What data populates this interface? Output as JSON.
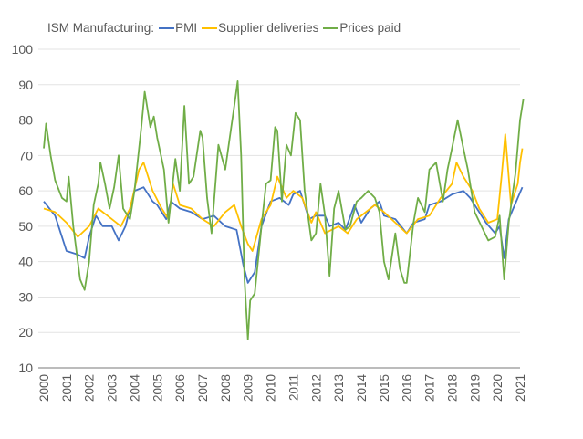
{
  "chart_data": {
    "type": "line",
    "title": "ISM Manufacturing:",
    "xlabel": "",
    "ylabel": "",
    "xlim": [
      2000,
      2021
    ],
    "ylim": [
      10,
      100
    ],
    "yticks": [
      10,
      20,
      30,
      40,
      50,
      60,
      70,
      80,
      90,
      100
    ],
    "xticks": [
      "2000",
      "2001",
      "2002",
      "2003",
      "2004",
      "2005",
      "2006",
      "2007",
      "2008",
      "2009",
      "2010",
      "2011",
      "2012",
      "2013",
      "2014",
      "2015",
      "2016",
      "2017",
      "2018",
      "2019",
      "2020",
      "2021"
    ],
    "grid": true,
    "legend": "top",
    "series": [
      {
        "name": "PMI",
        "color": "#4472C4",
        "x": [
          2000.0,
          2000.5,
          2001.0,
          2001.5,
          2001.8,
          2002.0,
          2002.3,
          2002.6,
          2003.0,
          2003.3,
          2003.6,
          2004.0,
          2004.4,
          2004.8,
          2005.0,
          2005.4,
          2005.6,
          2006.0,
          2006.5,
          2007.0,
          2007.5,
          2008.0,
          2008.5,
          2008.8,
          2009.0,
          2009.3,
          2009.6,
          2010.0,
          2010.4,
          2010.8,
          2011.0,
          2011.3,
          2011.7,
          2012.0,
          2012.4,
          2012.6,
          2013.0,
          2013.3,
          2013.7,
          2014.0,
          2014.4,
          2014.8,
          2015.0,
          2015.5,
          2016.0,
          2016.3,
          2016.8,
          2017.0,
          2017.5,
          2018.0,
          2018.5,
          2018.8,
          2019.0,
          2019.5,
          2019.9,
          2020.1,
          2020.3,
          2020.5,
          2020.9,
          2021.1
        ],
        "y": [
          57,
          53,
          43,
          42,
          41,
          47,
          53,
          50,
          50,
          46,
          50,
          60,
          61,
          57,
          56,
          52,
          57,
          55,
          54,
          52,
          53,
          50,
          49,
          39,
          34,
          37,
          50,
          57,
          58,
          56,
          59,
          60,
          52,
          53,
          53,
          50,
          51,
          49,
          56,
          51,
          55,
          57,
          53,
          52,
          48,
          51,
          52,
          56,
          57,
          59,
          60,
          58,
          56,
          51,
          48,
          50,
          41,
          52,
          58,
          61
        ]
      },
      {
        "name": "Supplier deliveries",
        "color": "#FFC000",
        "x": [
          2000.0,
          2000.5,
          2001.0,
          2001.5,
          2002.0,
          2002.4,
          2003.0,
          2003.4,
          2003.8,
          2004.2,
          2004.4,
          2004.8,
          2005.2,
          2005.5,
          2005.7,
          2006.0,
          2006.5,
          2007.0,
          2007.5,
          2008.0,
          2008.4,
          2008.7,
          2009.0,
          2009.2,
          2009.6,
          2010.0,
          2010.3,
          2010.7,
          2011.0,
          2011.4,
          2011.8,
          2012.0,
          2012.4,
          2013.0,
          2013.4,
          2013.8,
          2014.2,
          2014.6,
          2015.0,
          2015.5,
          2016.0,
          2016.5,
          2017.0,
          2017.5,
          2018.0,
          2018.2,
          2018.5,
          2018.9,
          2019.2,
          2019.6,
          2020.0,
          2020.2,
          2020.35,
          2020.6,
          2020.9,
          2021.0,
          2021.1
        ],
        "y": [
          55,
          54,
          51,
          47,
          50,
          55,
          52,
          50,
          55,
          66,
          68,
          60,
          55,
          52,
          62,
          56,
          55,
          52,
          50,
          54,
          56,
          50,
          45,
          43,
          52,
          56,
          64,
          58,
          60,
          58,
          51,
          54,
          48,
          50,
          48,
          52,
          54,
          56,
          54,
          51,
          48,
          52,
          53,
          58,
          62,
          68,
          64,
          60,
          55,
          51,
          52,
          65,
          76,
          56,
          62,
          68,
          72
        ]
      },
      {
        "name": "Prices paid",
        "color": "#70AD47",
        "x": [
          2000.0,
          2000.1,
          2000.3,
          2000.5,
          2000.8,
          2001.0,
          2001.1,
          2001.3,
          2001.5,
          2001.6,
          2001.8,
          2002.0,
          2002.2,
          2002.4,
          2002.5,
          2002.7,
          2002.9,
          2003.1,
          2003.3,
          2003.5,
          2003.8,
          2004.0,
          2004.3,
          2004.45,
          2004.7,
          2004.85,
          2005.0,
          2005.3,
          2005.5,
          2005.8,
          2006.0,
          2006.2,
          2006.4,
          2006.6,
          2006.9,
          2007.0,
          2007.2,
          2007.4,
          2007.7,
          2008.0,
          2008.2,
          2008.4,
          2008.55,
          2008.7,
          2008.85,
          2009.0,
          2009.1,
          2009.3,
          2009.6,
          2009.8,
          2010.0,
          2010.2,
          2010.3,
          2010.5,
          2010.7,
          2010.9,
          2011.1,
          2011.3,
          2011.5,
          2011.8,
          2012.0,
          2012.2,
          2012.4,
          2012.6,
          2012.8,
          2013.0,
          2013.3,
          2013.5,
          2013.8,
          2014.0,
          2014.3,
          2014.6,
          2014.8,
          2015.0,
          2015.2,
          2015.5,
          2015.7,
          2015.9,
          2016.0,
          2016.3,
          2016.5,
          2016.8,
          2017.0,
          2017.3,
          2017.6,
          2017.8,
          2018.0,
          2018.25,
          2018.5,
          2018.7,
          2019.0,
          2019.3,
          2019.6,
          2019.9,
          2020.1,
          2020.3,
          2020.5,
          2020.8,
          2021.0,
          2021.15
        ],
        "y": [
          72,
          79,
          70,
          63,
          58,
          57,
          64,
          50,
          40,
          35,
          32,
          40,
          56,
          62,
          68,
          62,
          55,
          61,
          70,
          55,
          52,
          60,
          78,
          88,
          78,
          81,
          75,
          66,
          51,
          69,
          60,
          84,
          62,
          64,
          77,
          75,
          58,
          48,
          73,
          66,
          75,
          84,
          91,
          70,
          35,
          18,
          29,
          31,
          50,
          62,
          63,
          78,
          77,
          57,
          73,
          70,
          82,
          80,
          60,
          46,
          48,
          62,
          53,
          36,
          55,
          60,
          49,
          50,
          57,
          58,
          60,
          58,
          54,
          40,
          35,
          48,
          38,
          34,
          34,
          51,
          58,
          54,
          66,
          68,
          57,
          66,
          72,
          80,
          72,
          66,
          54,
          50,
          46,
          47,
          53,
          35,
          51,
          65,
          80,
          86
        ]
      }
    ]
  }
}
